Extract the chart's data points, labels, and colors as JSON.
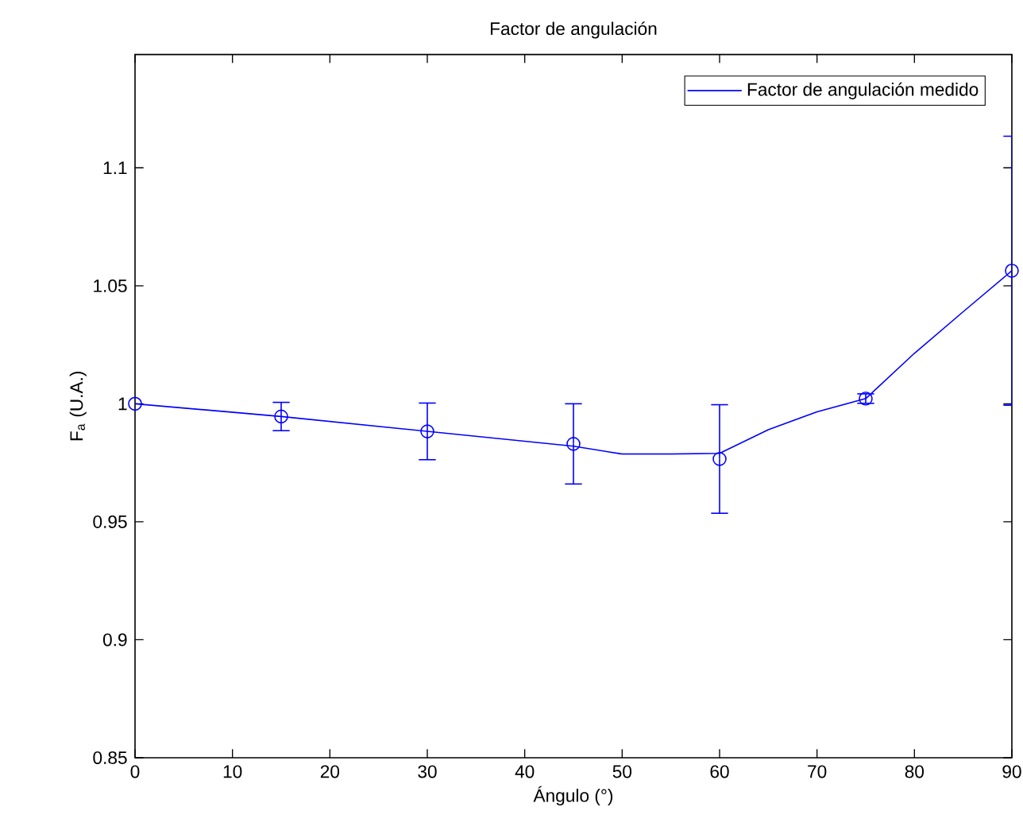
{
  "chart_data": {
    "type": "line",
    "title": "Factor de angulación",
    "xlabel": "Ángulo (°)",
    "ylabel": "F$_{a}$ (U.A.)",
    "xlim": [
      0,
      90
    ],
    "ylim": [
      0.85,
      1.148
    ],
    "xticks": [
      0,
      10,
      20,
      30,
      40,
      50,
      60,
      70,
      80,
      90
    ],
    "yticks": [
      0.85,
      0.9,
      0.95,
      1,
      1.05,
      1.1
    ],
    "legend": "top right",
    "grid": false,
    "series": [
      {
        "name": "Factor de angulación medido",
        "color": "#0000ff",
        "marker": "none",
        "line_style": "solid",
        "x": [
          0,
          15,
          30,
          45,
          50,
          55,
          60,
          65,
          70,
          75,
          80,
          85,
          90
        ],
        "values": [
          1.0,
          0.9946,
          0.9883,
          0.982,
          0.9787,
          0.9787,
          0.979,
          0.989,
          0.9966,
          1.0022,
          1.0214,
          1.039,
          1.0564
        ]
      },
      {
        "type": "scatter",
        "color": "#0000ff",
        "marker": "circle",
        "x": [
          0,
          15,
          30,
          45,
          60,
          75,
          90
        ],
        "values": [
          1.0,
          0.9946,
          0.9883,
          0.983,
          0.9766,
          1.0022,
          1.0564
        ],
        "errors": [
          null,
          0.006,
          0.012,
          0.017,
          0.023,
          0.002,
          0.057
        ]
      }
    ]
  }
}
